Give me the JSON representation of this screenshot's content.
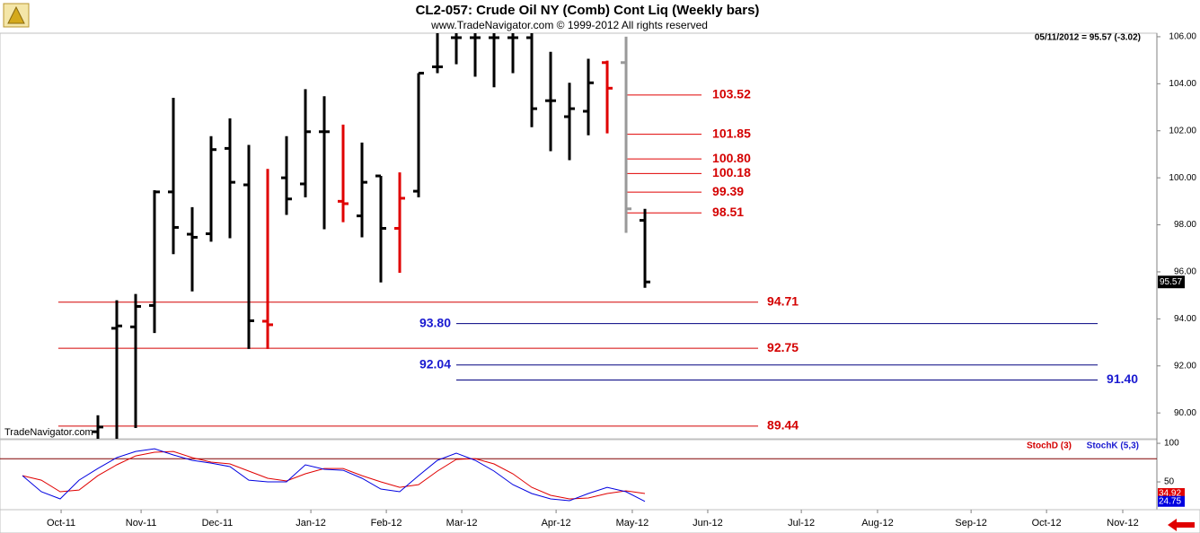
{
  "chart_data": [
    {
      "type": "ohlc",
      "title": "CL2-057:  Crude Oil NY (Comb) Cont Liq  (Weekly bars)",
      "subtitle": "www.TradeNavigator.com © 1999-2012 All rights reserved",
      "status": "05/11/2012 = 95.57 (-3.02)",
      "watermark": "TradeNavigator.com",
      "x": [
        0,
        1,
        2,
        3,
        4,
        5,
        6,
        7,
        8,
        9,
        10,
        11,
        12,
        13,
        14,
        15,
        16,
        17,
        18,
        19,
        20,
        21,
        22,
        23,
        24,
        25,
        26,
        27,
        28,
        29
      ],
      "open": [
        89.2,
        93.6,
        93.66,
        94.57,
        99.4,
        97.6,
        97.62,
        101.25,
        99.7,
        93.9,
        100.0,
        99.74,
        101.96,
        99.0,
        98.38,
        100.08,
        97.85,
        99.43,
        104.72,
        105.96,
        105.96,
        105.96,
        105.96,
        105.96,
        103.28,
        102.6,
        102.83,
        104.9,
        104.9,
        98.19
      ],
      "high": [
        89.9,
        94.79,
        95.06,
        99.47,
        103.4,
        98.75,
        101.77,
        102.53,
        101.4,
        100.38,
        101.77,
        103.77,
        103.47,
        102.26,
        101.5,
        100.08,
        100.23,
        104.45,
        106.15,
        106.15,
        106.15,
        106.15,
        106.15,
        106.15,
        105.36,
        104.04,
        105.06,
        104.98,
        106.0,
        98.68
      ],
      "low": [
        88.9,
        88.9,
        89.36,
        93.4,
        96.75,
        95.17,
        97.28,
        97.43,
        92.72,
        92.72,
        98.42,
        99.17,
        97.81,
        98.11,
        97.47,
        95.55,
        95.96,
        99.17,
        104.45,
        104.83,
        104.3,
        103.85,
        104.45,
        102.15,
        101.13,
        100.75,
        101.81,
        101.89,
        97.66,
        95.32
      ],
      "close": [
        89.4,
        93.7,
        94.53,
        99.4,
        97.89,
        97.47,
        101.2,
        99.81,
        93.92,
        93.75,
        99.1,
        101.96,
        101.96,
        98.9,
        99.81,
        97.85,
        99.13,
        104.45,
        104.72,
        105.96,
        105.96,
        105.96,
        105.96,
        102.94,
        103.28,
        102.94,
        104.04,
        103.81,
        98.68,
        95.57
      ],
      "bar_colors": [
        "#000",
        "#000",
        "#000",
        "#000",
        "#000",
        "#000",
        "#000",
        "#000",
        "#000",
        "#e00000",
        "#000",
        "#000",
        "#000",
        "#e00000",
        "#000",
        "#000",
        "#e00000",
        "#000",
        "#000",
        "#000",
        "#000",
        "#000",
        "#000",
        "#000",
        "#000",
        "#000",
        "#000",
        "#e00000",
        "#999999",
        "#000"
      ],
      "levels": [
        103.52,
        101.85,
        100.8,
        100.18,
        99.39,
        98.51,
        94.71,
        92.75,
        89.44,
        93.8,
        92.04,
        91.4
      ],
      "value_labels": [
        "103.52",
        "101.85",
        "100.80",
        "100.18",
        "99.39",
        "98.51",
        "94.71",
        "92.75",
        "89.44",
        "93.80",
        "92.04",
        "91.40"
      ],
      "level_colors": [
        "#e00000",
        "#e00000",
        "#e00000",
        "#e00000",
        "#e00000",
        "#e00000",
        "#d40000",
        "#d40000",
        "#d40000",
        "#000080",
        "#000080",
        "#000080"
      ],
      "level_label_colors": [
        "#d40000",
        "#d40000",
        "#d40000",
        "#d40000",
        "#d40000",
        "#d40000",
        "#d40000",
        "#d40000",
        "#d40000",
        "#1a1ad0",
        "#1a1ad0",
        "#1a1ad0"
      ],
      "xlim": [
        -5.19,
        56.14
      ],
      "xticks": [
        {
          "value": -1.95,
          "label": "Oct-11"
        },
        {
          "value": 2.29,
          "label": "Nov-11"
        },
        {
          "value": 6.33,
          "label": "Dec-11"
        },
        {
          "value": 11.29,
          "label": "Jan-12"
        },
        {
          "value": 15.29,
          "label": "Feb-12"
        },
        {
          "value": 19.29,
          "label": "Mar-12"
        },
        {
          "value": 24.29,
          "label": "Apr-12"
        },
        {
          "value": 28.33,
          "label": "May-12"
        },
        {
          "value": 32.33,
          "label": "Jun-12"
        },
        {
          "value": 37.29,
          "label": "Jul-12"
        },
        {
          "value": 41.33,
          "label": "Aug-12"
        },
        {
          "value": 46.29,
          "label": "Sep-12"
        },
        {
          "value": 50.29,
          "label": "Oct-12"
        },
        {
          "value": 54.33,
          "label": "Nov-12"
        }
      ],
      "ylim": [
        88.9,
        106.15
      ],
      "yticks": [
        {
          "value": 90,
          "label": "90.00"
        },
        {
          "value": 92,
          "label": "92.00"
        },
        {
          "value": 94,
          "label": "94.00"
        },
        {
          "value": 96,
          "label": "96.00"
        },
        {
          "value": 98,
          "label": "98.00"
        },
        {
          "value": 100,
          "label": "100.00"
        },
        {
          "value": 102,
          "label": "102.00"
        },
        {
          "value": 104,
          "label": "104.00"
        },
        {
          "value": 106,
          "label": "106.00"
        }
      ]
    },
    {
      "type": "line",
      "x": [
        -4,
        -3,
        -2,
        -1,
        0,
        1,
        2,
        3,
        4,
        5,
        6,
        7,
        8,
        9,
        10,
        11,
        12,
        13,
        14,
        15,
        16,
        17,
        18,
        19,
        20,
        21,
        22,
        23,
        24,
        25,
        26,
        27,
        28,
        29
      ],
      "series": [
        {
          "name": "StochD (3)",
          "color": "#e00000",
          "values": [
            58.1,
            52.3,
            37.2,
            39.5,
            58.1,
            72.1,
            83.7,
            88.4,
            89.5,
            81.4,
            75.6,
            73.3,
            64.0,
            54.7,
            51.2,
            60.5,
            67.4,
            67.4,
            58.1,
            50.0,
            43.0,
            46.5,
            64.0,
            79.1,
            80.2,
            73.3,
            60.5,
            43.0,
            32.6,
            27.9,
            29.1,
            34.9,
            38.4,
            34.92
          ]
        },
        {
          "name": "StochK (5,3)",
          "color": "#0000e0",
          "values": [
            58.1,
            37.2,
            27.9,
            52.3,
            67.4,
            81.4,
            89.5,
            93.0,
            84.9,
            77.9,
            74.4,
            69.8,
            52.3,
            50.0,
            50.0,
            72.1,
            66.3,
            65.1,
            54.7,
            40.7,
            37.2,
            58.1,
            77.9,
            87.2,
            77.9,
            64.0,
            46.5,
            34.9,
            27.9,
            25.6,
            34.9,
            43.0,
            37.2,
            24.75
          ]
        }
      ],
      "hlines": [
        80
      ],
      "xlim": [
        -5.19,
        56.14
      ],
      "ylim": [
        14,
        104.7
      ],
      "yticks": [
        50,
        100
      ]
    }
  ]
}
